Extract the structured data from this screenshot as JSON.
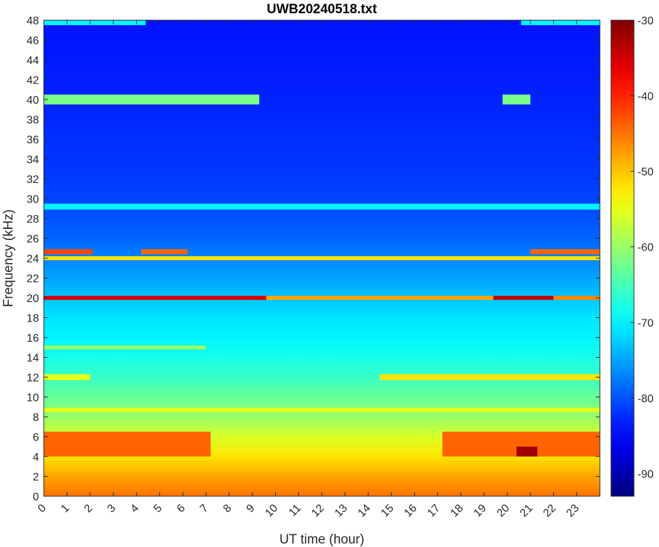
{
  "chart_data": {
    "type": "heatmap",
    "title": "UWB20240518.txt",
    "xlabel": "UT time (hour)",
    "ylabel": "Frequency (kHz)",
    "xlim": [
      0,
      24
    ],
    "ylim": [
      0,
      48
    ],
    "x_ticks": [
      "0",
      "1",
      "2",
      "3",
      "4",
      "5",
      "6",
      "7",
      "8",
      "9",
      "10",
      "11",
      "12",
      "13",
      "14",
      "15",
      "16",
      "17",
      "18",
      "19",
      "20",
      "21",
      "22",
      "23"
    ],
    "y_ticks": [
      "0",
      "2",
      "4",
      "6",
      "8",
      "10",
      "12",
      "14",
      "16",
      "18",
      "20",
      "22",
      "24",
      "26",
      "28",
      "30",
      "32",
      "34",
      "36",
      "38",
      "40",
      "42",
      "44",
      "46",
      "48"
    ],
    "colorbar": {
      "range": [
        -93,
        -30
      ],
      "ticks": [
        "-30",
        "-40",
        "-50",
        "-60",
        "-70",
        "-80",
        "-90"
      ],
      "tick_values": [
        -30,
        -40,
        -50,
        -60,
        -70,
        -80,
        -90
      ],
      "colormap": "jet"
    },
    "background_profile": {
      "description": "typical power level (dB) vs frequency",
      "freq_khz": [
        0,
        2,
        4,
        6,
        8,
        10,
        12,
        14,
        16,
        18,
        20,
        22,
        24,
        26,
        28,
        30,
        34,
        40,
        48
      ],
      "level_db": [
        -45,
        -48,
        -52,
        -56,
        -60,
        -63,
        -66,
        -68,
        -70,
        -71,
        -73,
        -75,
        -77,
        -79,
        -80,
        -81,
        -82,
        -83,
        -84
      ]
    },
    "features": [
      {
        "label": "band 19.8-20.2 kHz",
        "freq_khz": [
          19.8,
          20.2
        ],
        "time_h": [
          0,
          9.6
        ],
        "level_db": -36
      },
      {
        "label": "band 19.8-20.2 kHz",
        "freq_khz": [
          19.8,
          20.2
        ],
        "time_h": [
          9.6,
          19.4
        ],
        "level_db": -48
      },
      {
        "label": "band 19.8-20.2 kHz",
        "freq_khz": [
          19.8,
          20.2
        ],
        "time_h": [
          19.4,
          22.0
        ],
        "level_db": -34
      },
      {
        "label": "band 19.8-20.2 kHz",
        "freq_khz": [
          19.8,
          20.2
        ],
        "time_h": [
          22.0,
          24
        ],
        "level_db": -46
      },
      {
        "label": "band 24.6 kHz",
        "freq_khz": [
          24.4,
          24.9
        ],
        "time_h": [
          0,
          2.1
        ],
        "level_db": -42
      },
      {
        "label": "band 24.6 kHz",
        "freq_khz": [
          24.4,
          24.9
        ],
        "time_h": [
          4.2,
          6.2
        ],
        "level_db": -44
      },
      {
        "label": "band 24.6 kHz",
        "freq_khz": [
          24.4,
          24.9
        ],
        "time_h": [
          21.0,
          24
        ],
        "level_db": -44
      },
      {
        "label": "band 24.0 kHz",
        "freq_khz": [
          23.8,
          24.2
        ],
        "time_h": [
          0,
          24
        ],
        "level_db": -52
      },
      {
        "label": "band 40 kHz",
        "freq_khz": [
          39.5,
          40.5
        ],
        "time_h": [
          0,
          9.3
        ],
        "level_db": -62
      },
      {
        "label": "band 40 kHz",
        "freq_khz": [
          39.5,
          40.5
        ],
        "time_h": [
          19.8,
          21.0
        ],
        "level_db": -62
      },
      {
        "label": "band 29.2 kHz",
        "freq_khz": [
          28.9,
          29.5
        ],
        "time_h": [
          0,
          24
        ],
        "level_db": -70
      },
      {
        "label": "band 12 kHz",
        "freq_khz": [
          11.7,
          12.3
        ],
        "time_h": [
          14.5,
          24
        ],
        "level_db": -52
      },
      {
        "label": "band 12 kHz",
        "freq_khz": [
          11.7,
          12.3
        ],
        "time_h": [
          0,
          2.0
        ],
        "level_db": -55
      },
      {
        "label": "band 15 kHz",
        "freq_khz": [
          14.8,
          15.2
        ],
        "time_h": [
          0,
          7.0
        ],
        "level_db": -60
      },
      {
        "label": "band 8.7 kHz",
        "freq_khz": [
          8.5,
          8.9
        ],
        "time_h": [
          0,
          24
        ],
        "level_db": -55
      },
      {
        "label": "band 4-6.5 kHz",
        "freq_khz": [
          4.0,
          6.5
        ],
        "time_h": [
          0,
          7.2
        ],
        "level_db": -44
      },
      {
        "label": "band 4-6.5 kHz",
        "freq_khz": [
          4.0,
          6.5
        ],
        "time_h": [
          17.2,
          24
        ],
        "level_db": -44
      },
      {
        "label": "burst 4-5 kHz",
        "freq_khz": [
          4.0,
          5.0
        ],
        "time_h": [
          20.4,
          21.3
        ],
        "level_db": -32
      },
      {
        "label": "band 47.7 kHz",
        "freq_khz": [
          47.5,
          48.0
        ],
        "time_h": [
          0,
          4.4
        ],
        "level_db": -70
      },
      {
        "label": "band 47.7 kHz",
        "freq_khz": [
          47.5,
          48.0
        ],
        "time_h": [
          20.6,
          24
        ],
        "level_db": -70
      }
    ]
  }
}
